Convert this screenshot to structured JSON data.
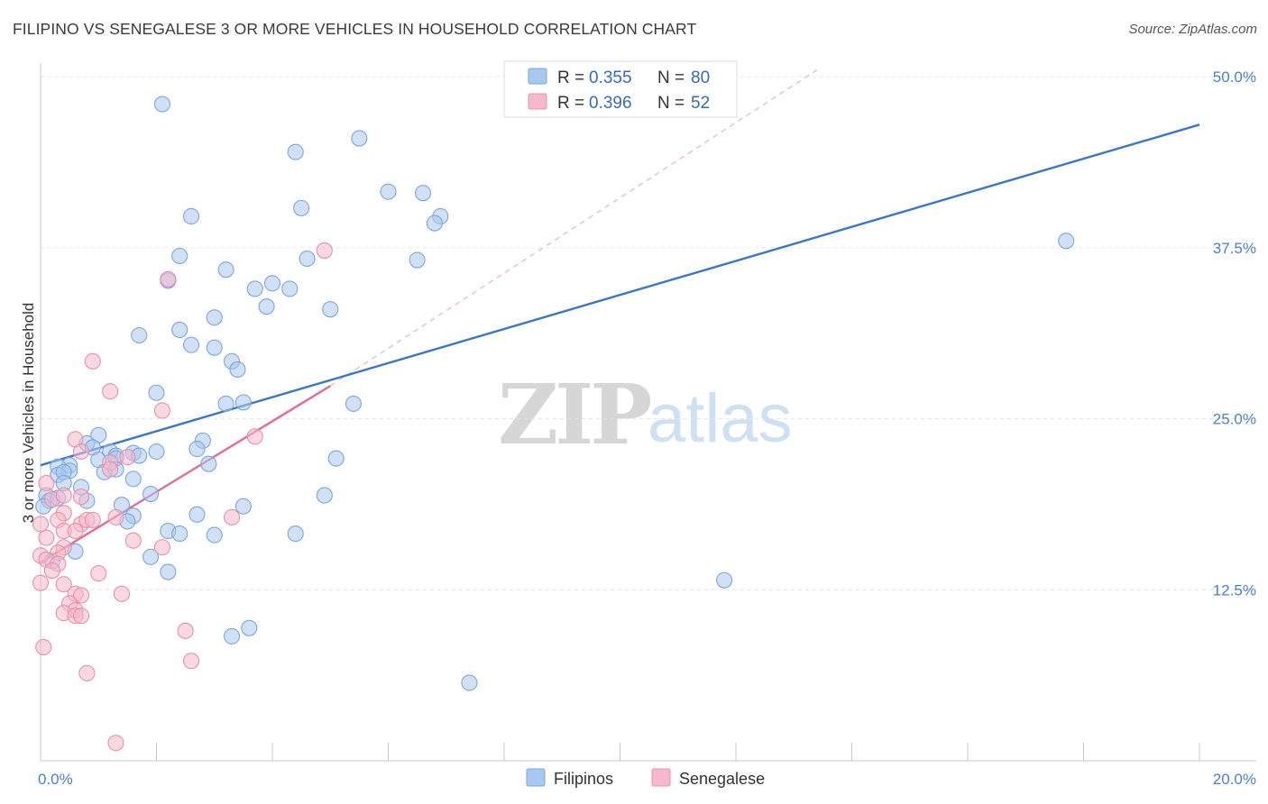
{
  "title": "FILIPINO VS SENEGALESE 3 OR MORE VEHICLES IN HOUSEHOLD CORRELATION CHART",
  "source": "Source: ZipAtlas.com",
  "watermark": {
    "zip": "ZIP",
    "atlas": "atlas"
  },
  "stats": [
    {
      "r_label": "R =",
      "r_value": "0.355",
      "n_label": "N =",
      "n_value": "80",
      "color": "#a9c8ef"
    },
    {
      "r_label": "R =",
      "r_value": "0.396",
      "n_label": "N =",
      "n_value": "52",
      "color": "#f6b8cb"
    }
  ],
  "legend": [
    {
      "label": "Filipinos",
      "color": "#a9c8ef"
    },
    {
      "label": "Senegalese",
      "color": "#f6b8cb"
    }
  ],
  "chart_data": {
    "type": "scatter",
    "ylabel": "3 or more Vehicles in Household",
    "xlim": [
      0,
      20
    ],
    "ylim": [
      0,
      51
    ],
    "y_ticks": [
      {
        "value": 12.5,
        "label": "12.5%"
      },
      {
        "value": 25.0,
        "label": "25.0%"
      },
      {
        "value": 37.5,
        "label": "37.5%"
      },
      {
        "value": 50.0,
        "label": "50.0%"
      }
    ],
    "x_tick_labels": [
      {
        "value": 0,
        "label": "0.0%"
      },
      {
        "value": 20,
        "label": "20.0%"
      }
    ],
    "x_minor_ticks": [
      2,
      4,
      6,
      8,
      10,
      12,
      14,
      16,
      18,
      20
    ],
    "series": [
      {
        "name": "Filipinos",
        "color": "#a9c8ef",
        "stroke": "#7ba6df",
        "trend": {
          "x": [
            0,
            20
          ],
          "y": [
            21.6,
            46.5
          ],
          "color": "#3a76cc",
          "dashed_extension": false
        },
        "points": [
          [
            2.1,
            48.0
          ],
          [
            5.5,
            45.5
          ],
          [
            4.4,
            44.5
          ],
          [
            6.0,
            41.6
          ],
          [
            6.6,
            41.5
          ],
          [
            6.9,
            39.8
          ],
          [
            6.8,
            39.3
          ],
          [
            2.6,
            39.8
          ],
          [
            4.5,
            40.4
          ],
          [
            17.7,
            38.0
          ],
          [
            2.4,
            36.9
          ],
          [
            4.6,
            36.7
          ],
          [
            6.5,
            36.6
          ],
          [
            3.2,
            35.9
          ],
          [
            2.2,
            35.1
          ],
          [
            3.7,
            34.5
          ],
          [
            4.0,
            34.9
          ],
          [
            4.3,
            34.5
          ],
          [
            3.9,
            33.2
          ],
          [
            5.0,
            33.0
          ],
          [
            3.0,
            32.4
          ],
          [
            2.4,
            31.5
          ],
          [
            1.7,
            31.1
          ],
          [
            2.6,
            30.4
          ],
          [
            3.0,
            30.2
          ],
          [
            3.3,
            29.2
          ],
          [
            3.4,
            28.6
          ],
          [
            2.0,
            26.9
          ],
          [
            3.2,
            26.1
          ],
          [
            3.5,
            26.2
          ],
          [
            5.4,
            26.1
          ],
          [
            1.0,
            23.8
          ],
          [
            0.8,
            23.2
          ],
          [
            0.9,
            22.9
          ],
          [
            1.2,
            22.6
          ],
          [
            1.3,
            22.3
          ],
          [
            1.6,
            22.5
          ],
          [
            2.0,
            22.6
          ],
          [
            1.7,
            22.3
          ],
          [
            2.8,
            23.4
          ],
          [
            2.7,
            22.8
          ],
          [
            1.0,
            22.0
          ],
          [
            1.3,
            22.1
          ],
          [
            0.5,
            21.6
          ],
          [
            0.3,
            21.5
          ],
          [
            0.5,
            21.2
          ],
          [
            0.3,
            20.9
          ],
          [
            0.4,
            21.1
          ],
          [
            1.1,
            21.1
          ],
          [
            1.3,
            21.3
          ],
          [
            2.9,
            21.7
          ],
          [
            5.1,
            22.1
          ],
          [
            1.6,
            20.6
          ],
          [
            0.4,
            20.3
          ],
          [
            0.7,
            20.0
          ],
          [
            0.1,
            19.4
          ],
          [
            0.15,
            19.0
          ],
          [
            0.3,
            19.2
          ],
          [
            0.8,
            19.0
          ],
          [
            1.4,
            18.7
          ],
          [
            1.9,
            19.5
          ],
          [
            4.9,
            19.4
          ],
          [
            0.05,
            18.6
          ],
          [
            3.5,
            18.6
          ],
          [
            1.6,
            17.9
          ],
          [
            1.5,
            17.5
          ],
          [
            2.7,
            18.0
          ],
          [
            2.2,
            16.8
          ],
          [
            2.4,
            16.6
          ],
          [
            3.0,
            16.5
          ],
          [
            4.4,
            16.6
          ],
          [
            0.6,
            15.3
          ],
          [
            1.9,
            14.9
          ],
          [
            0.2,
            14.6
          ],
          [
            2.2,
            13.8
          ],
          [
            11.8,
            13.2
          ],
          [
            3.6,
            9.7
          ],
          [
            3.3,
            9.1
          ],
          [
            7.4,
            5.7
          ]
        ]
      },
      {
        "name": "Senegalese",
        "color": "#f6b8cb",
        "stroke": "#e890ab",
        "trend": {
          "x": [
            0,
            5
          ],
          "y": [
            14.5,
            27.4
          ],
          "color": "#e06e98",
          "dashed_extension": true,
          "dashed_to": [
            13.4,
            50.5
          ]
        },
        "points": [
          [
            4.9,
            37.3
          ],
          [
            2.2,
            35.2
          ],
          [
            0.9,
            29.2
          ],
          [
            1.2,
            27.0
          ],
          [
            2.1,
            25.6
          ],
          [
            3.7,
            23.7
          ],
          [
            0.6,
            23.5
          ],
          [
            1.5,
            22.2
          ],
          [
            1.2,
            21.8
          ],
          [
            1.2,
            21.3
          ],
          [
            0.7,
            22.6
          ],
          [
            0.1,
            20.3
          ],
          [
            0.2,
            19.1
          ],
          [
            0.4,
            19.4
          ],
          [
            0.7,
            19.3
          ],
          [
            0.4,
            18.1
          ],
          [
            0.3,
            17.6
          ],
          [
            0.7,
            17.3
          ],
          [
            0.8,
            17.6
          ],
          [
            0.9,
            17.6
          ],
          [
            1.3,
            17.8
          ],
          [
            3.3,
            17.8
          ],
          [
            0.0,
            17.3
          ],
          [
            0.4,
            16.8
          ],
          [
            0.6,
            16.8
          ],
          [
            1.6,
            16.1
          ],
          [
            0.1,
            16.3
          ],
          [
            0.4,
            15.6
          ],
          [
            0.3,
            15.2
          ],
          [
            2.1,
            15.6
          ],
          [
            0.0,
            15.0
          ],
          [
            0.1,
            14.7
          ],
          [
            0.3,
            14.4
          ],
          [
            0.2,
            13.9
          ],
          [
            1.0,
            13.7
          ],
          [
            0.0,
            13.0
          ],
          [
            0.4,
            12.9
          ],
          [
            0.6,
            12.2
          ],
          [
            0.7,
            12.1
          ],
          [
            1.4,
            12.2
          ],
          [
            0.5,
            11.5
          ],
          [
            0.6,
            11.0
          ],
          [
            0.4,
            10.8
          ],
          [
            0.6,
            10.6
          ],
          [
            0.7,
            10.6
          ],
          [
            2.5,
            9.5
          ],
          [
            0.05,
            8.3
          ],
          [
            2.6,
            7.3
          ],
          [
            0.8,
            6.4
          ],
          [
            1.3,
            1.3
          ]
        ]
      }
    ]
  }
}
